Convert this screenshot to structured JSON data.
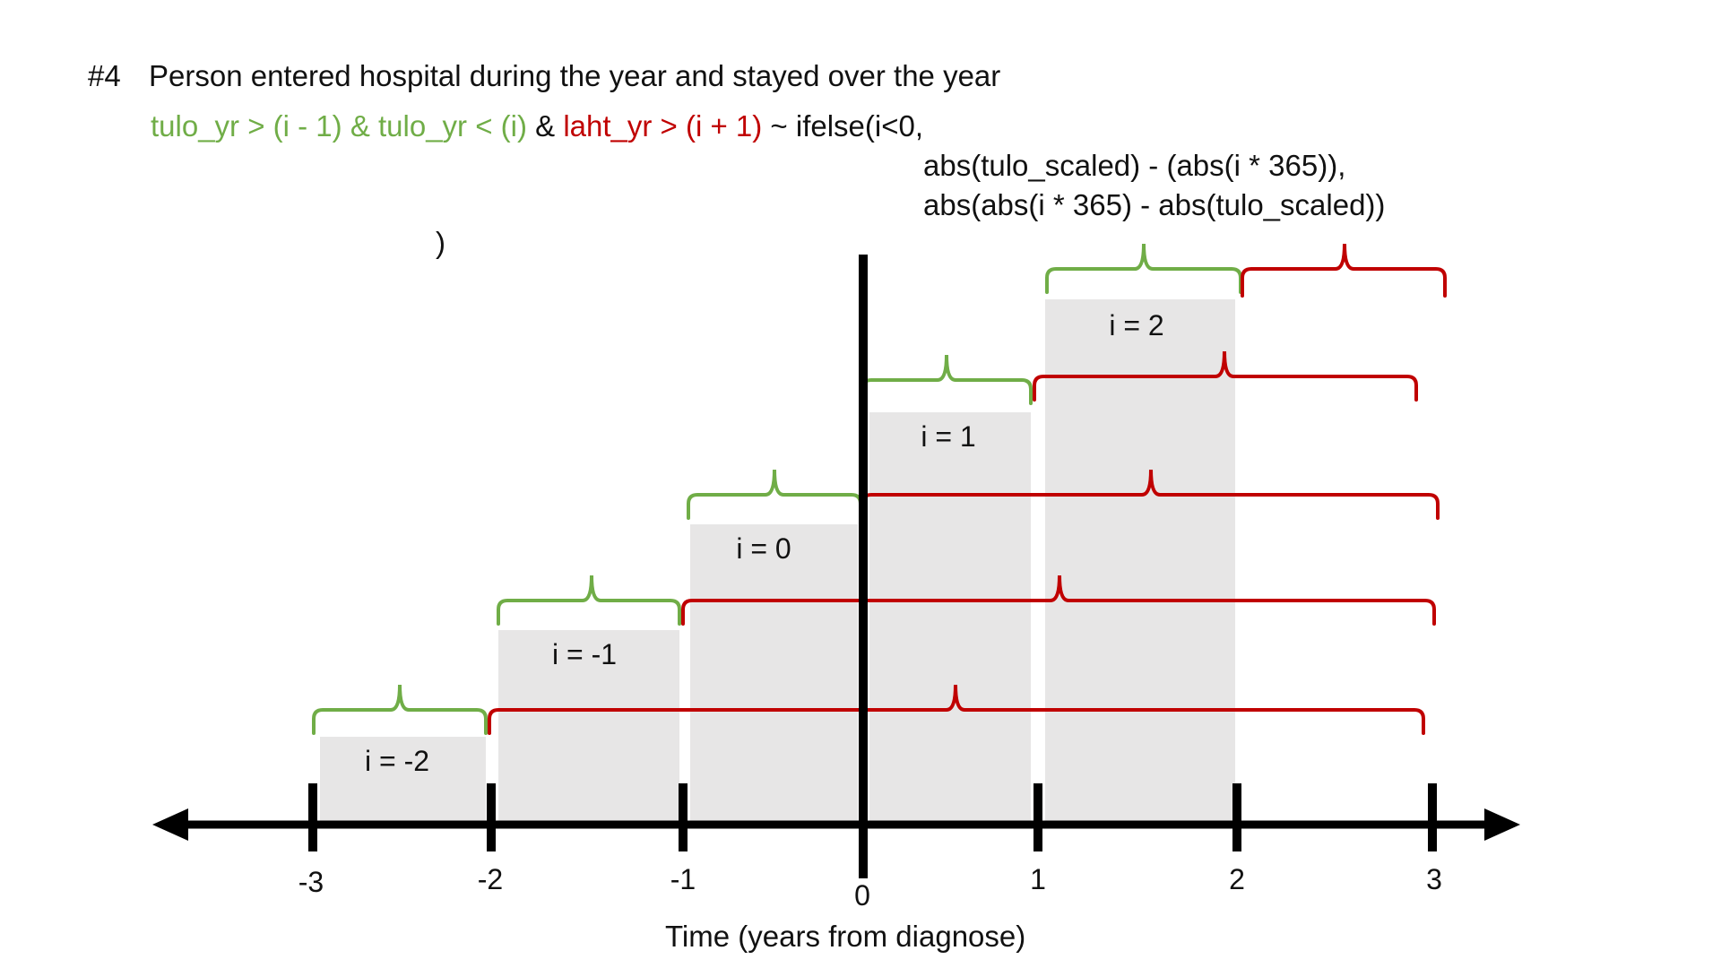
{
  "header": {
    "number": "#4",
    "title": "Person entered hospital during the year and stayed over the year"
  },
  "formula": {
    "green_part": "tulo_yr > (i - 1) & tulo_yr < (i)",
    "amp": " & ",
    "red_part": "laht_yr > (i + 1)",
    "tail": " ~ ifelse(i<0,",
    "line2": "abs(tulo_scaled) - (abs(i * 365)),",
    "line3": "abs(abs(i * 365) - abs(tulo_scaled))",
    "close": ")"
  },
  "axis": {
    "label": "Time (years from diagnose)",
    "ticks": [
      "-3",
      "-2",
      "-1",
      "0",
      "1",
      "2",
      "3"
    ]
  },
  "blocks": [
    {
      "label": "i = -2",
      "start": -3,
      "end": -2,
      "level": 1
    },
    {
      "label": "i = -1",
      "start": -2,
      "end": -1,
      "level": 2
    },
    {
      "label": "i = 0",
      "start": -1,
      "end": 0,
      "level": 3
    },
    {
      "label": "i = 1",
      "start": 0,
      "end": 1,
      "level": 4
    },
    {
      "label": "i = 2",
      "start": 1,
      "end": 2,
      "level": 5
    }
  ],
  "colors": {
    "green": "#70ad47",
    "red": "#c00000",
    "block": "#e7e6e6",
    "axis": "#000000"
  }
}
